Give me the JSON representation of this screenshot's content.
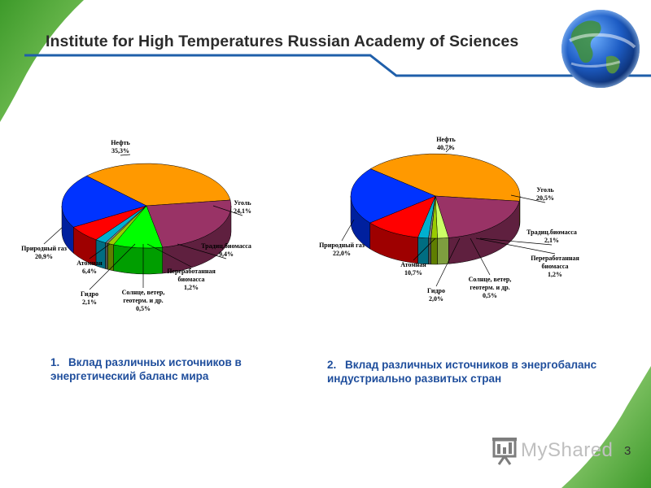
{
  "header": {
    "title": "Institute for High Temperatures Russian Academy of Sciences"
  },
  "slide_number": "3",
  "logo_text": "MyShared",
  "captions": [
    {
      "number": "1.",
      "text": "Вклад различных источников в энергетический баланс мира"
    },
    {
      "number": "2.",
      "text": "Вклад различных источников в энергобаланс индустриально развитых стран"
    }
  ],
  "colors": {
    "green_accent": "#5cb53a",
    "blue_line": "#1f5faa",
    "caption_blue": "#1f4e9c"
  },
  "chart_data": [
    {
      "type": "pie",
      "title": "",
      "slices": [
        {
          "label": "Нефть",
          "value": 35.3,
          "value_label": "35,3%",
          "color": "#ff9900"
        },
        {
          "label": "Уголь",
          "value": 24.1,
          "value_label": "24,1%",
          "color": "#993366"
        },
        {
          "label": "Традиц.биомасса",
          "value": 9.4,
          "value_label": "9,4%",
          "color": "#00ff00"
        },
        {
          "label": "Переработанная биомасса",
          "value": 1.2,
          "value_label": "1,2%",
          "color": "#99cc00"
        },
        {
          "label": "Солнце, ветер, геотерм. и др.",
          "value": 0.5,
          "value_label": "0,5%",
          "color": "#808080"
        },
        {
          "label": "Гидро",
          "value": 2.1,
          "value_label": "2,1%",
          "color": "#00b0d0"
        },
        {
          "label": "Атомная",
          "value": 6.4,
          "value_label": "6,4%",
          "color": "#ff0000"
        },
        {
          "label": "Природный газ",
          "value": 20.9,
          "value_label": "20,9%",
          "color": "#0033ff"
        }
      ]
    },
    {
      "type": "pie",
      "title": "",
      "slices": [
        {
          "label": "Нефть",
          "value": 40.7,
          "value_label": "40,7%",
          "color": "#ff9900"
        },
        {
          "label": "Уголь",
          "value": 20.5,
          "value_label": "20,5%",
          "color": "#993366"
        },
        {
          "label": "Традиц.биомасса",
          "value": 2.1,
          "value_label": "2,1%",
          "color": "#ccff66"
        },
        {
          "label": "Переработанная биомасса",
          "value": 1.2,
          "value_label": "1,2%",
          "color": "#99cc00"
        },
        {
          "label": "Солнце, ветер, геотерм. и др.",
          "value": 0.5,
          "value_label": "0,5%",
          "color": "#808080"
        },
        {
          "label": "Гидро",
          "value": 2.0,
          "value_label": "2,0%",
          "color": "#00b0d0"
        },
        {
          "label": "Атомная",
          "value": 10.7,
          "value_label": "10,7%",
          "color": "#ff0000"
        },
        {
          "label": "Природный газ",
          "value": 22.0,
          "value_label": "22,0%",
          "color": "#0033ff"
        }
      ]
    }
  ]
}
